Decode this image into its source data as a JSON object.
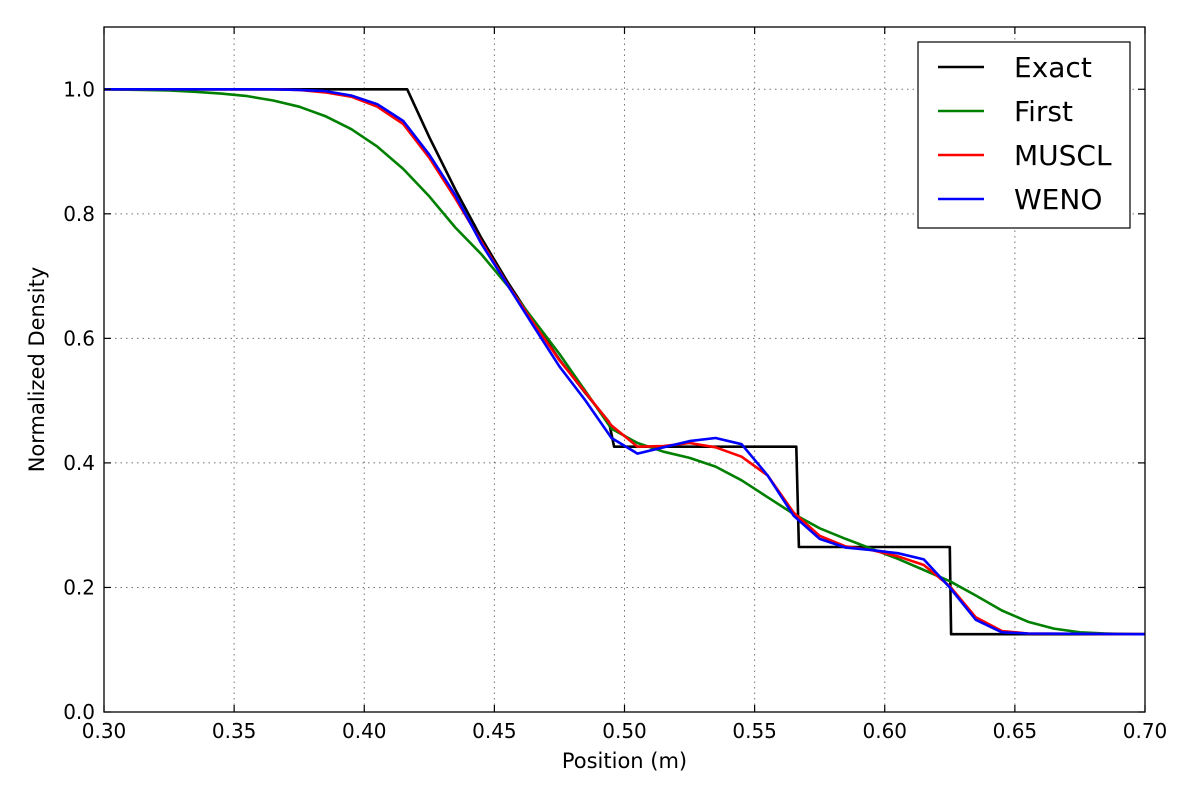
{
  "chart_data": {
    "type": "line",
    "title": "",
    "xlabel": "Position (m)",
    "ylabel": "Normalized Density",
    "xlim": [
      0.3,
      0.7
    ],
    "ylim": [
      0.0,
      1.1
    ],
    "xticks": [
      0.3,
      0.35,
      0.4,
      0.45,
      0.5,
      0.55,
      0.6,
      0.65,
      0.7
    ],
    "xtick_labels": [
      "0.30",
      "0.35",
      "0.40",
      "0.45",
      "0.50",
      "0.55",
      "0.60",
      "0.65",
      "0.70"
    ],
    "yticks": [
      0.0,
      0.2,
      0.4,
      0.6,
      0.8,
      1.0
    ],
    "ytick_labels": [
      "0.0",
      "0.2",
      "0.4",
      "0.6",
      "0.8",
      "1.0"
    ],
    "grid": true,
    "legend_position": "top-right",
    "series": [
      {
        "name": "Exact",
        "color": "#000000",
        "x": [
          0.3,
          0.415,
          0.4165,
          0.425,
          0.435,
          0.445,
          0.455,
          0.465,
          0.475,
          0.485,
          0.494,
          0.496,
          0.566,
          0.567,
          0.625,
          0.6255,
          0.7
        ],
        "y": [
          1.0,
          1.0,
          1.0,
          0.923,
          0.839,
          0.761,
          0.691,
          0.627,
          0.566,
          0.512,
          0.466,
          0.426,
          0.426,
          0.265,
          0.265,
          0.125,
          0.125
        ]
      },
      {
        "name": "First",
        "color": "#008000",
        "x": [
          0.3,
          0.315,
          0.325,
          0.335,
          0.345,
          0.355,
          0.365,
          0.375,
          0.385,
          0.395,
          0.405,
          0.415,
          0.425,
          0.435,
          0.445,
          0.455,
          0.465,
          0.475,
          0.485,
          0.495,
          0.505,
          0.515,
          0.525,
          0.535,
          0.545,
          0.555,
          0.565,
          0.575,
          0.585,
          0.595,
          0.605,
          0.615,
          0.625,
          0.635,
          0.645,
          0.655,
          0.665,
          0.675,
          0.685,
          0.695,
          0.7
        ],
        "y": [
          1.0,
          0.999,
          0.998,
          0.996,
          0.993,
          0.989,
          0.982,
          0.972,
          0.957,
          0.936,
          0.908,
          0.872,
          0.828,
          0.778,
          0.735,
          0.685,
          0.63,
          0.575,
          0.515,
          0.455,
          0.432,
          0.418,
          0.408,
          0.394,
          0.372,
          0.345,
          0.318,
          0.295,
          0.278,
          0.262,
          0.246,
          0.228,
          0.21,
          0.187,
          0.163,
          0.145,
          0.134,
          0.128,
          0.126,
          0.125,
          0.125
        ]
      },
      {
        "name": "MUSCL",
        "color": "#ff0000",
        "x": [
          0.3,
          0.365,
          0.375,
          0.385,
          0.395,
          0.405,
          0.415,
          0.425,
          0.435,
          0.445,
          0.455,
          0.465,
          0.475,
          0.485,
          0.495,
          0.505,
          0.515,
          0.525,
          0.535,
          0.545,
          0.555,
          0.565,
          0.575,
          0.585,
          0.595,
          0.605,
          0.615,
          0.625,
          0.635,
          0.645,
          0.655,
          0.7
        ],
        "y": [
          1.0,
          1.0,
          0.999,
          0.995,
          0.988,
          0.972,
          0.944,
          0.89,
          0.825,
          0.755,
          0.687,
          0.625,
          0.565,
          0.513,
          0.46,
          0.426,
          0.427,
          0.432,
          0.425,
          0.41,
          0.38,
          0.32,
          0.283,
          0.266,
          0.26,
          0.25,
          0.236,
          0.202,
          0.152,
          0.13,
          0.126,
          0.125
        ]
      },
      {
        "name": "WENO",
        "color": "#0000ff",
        "x": [
          0.3,
          0.365,
          0.375,
          0.385,
          0.395,
          0.405,
          0.415,
          0.425,
          0.435,
          0.445,
          0.455,
          0.465,
          0.475,
          0.485,
          0.495,
          0.505,
          0.515,
          0.525,
          0.535,
          0.545,
          0.555,
          0.565,
          0.575,
          0.585,
          0.595,
          0.605,
          0.615,
          0.625,
          0.635,
          0.645,
          0.655,
          0.7
        ],
        "y": [
          1.0,
          1.0,
          0.999,
          0.997,
          0.99,
          0.976,
          0.949,
          0.895,
          0.83,
          0.752,
          0.686,
          0.62,
          0.555,
          0.5,
          0.44,
          0.415,
          0.425,
          0.435,
          0.44,
          0.43,
          0.38,
          0.315,
          0.278,
          0.264,
          0.26,
          0.255,
          0.245,
          0.2,
          0.148,
          0.128,
          0.126,
          0.125
        ]
      }
    ]
  }
}
